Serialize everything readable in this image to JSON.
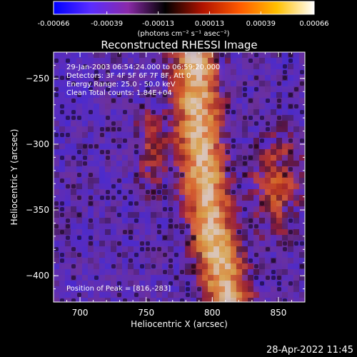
{
  "chart_data": {
    "type": "heatmap",
    "title": "Reconstructed RHESSI Image",
    "xlabel": "Heliocentric X (arcsec)",
    "ylabel": "Heliocentric Y (arcsec)",
    "xlim": [
      680,
      870
    ],
    "ylim": [
      -420,
      -230
    ],
    "x_ticks": [
      700,
      750,
      800,
      850
    ],
    "y_ticks": [
      -250,
      -300,
      -350,
      -400
    ],
    "colorbar": {
      "range": [
        -0.00066,
        0.00066
      ],
      "ticks": [
        "-0.00066",
        "-0.00039",
        "-0.00013",
        "0.00013",
        "0.00039",
        "0.00066"
      ],
      "units_label": "(photons cm⁻² s⁻¹ asec⁻²)",
      "colors": [
        "#0000ff",
        "#5a2dff",
        "#8a2aa8",
        "#000000",
        "#b01200",
        "#ff5a00",
        "#ffc000",
        "#ffffff"
      ]
    },
    "annotations": [
      "29-Jan-2003 06:54:24.000 to 06:59:20.000",
      "Detectors: 3F 4F 5F 6F 7F 8F, Att 0",
      "Energy Range: 25.0 - 50.0 keV",
      "Clean    Total counts: 1.84E+04"
    ],
    "peak_label": "Position of Peak = [816,-283]",
    "peak": [
      816,
      -283
    ]
  },
  "footer": {
    "date": "28-Apr-2022 11:45"
  }
}
